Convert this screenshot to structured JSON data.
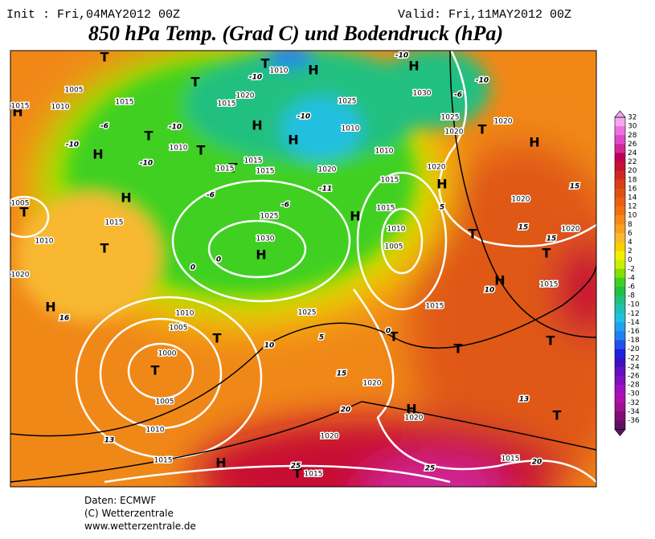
{
  "header": {
    "init": "Init : Fri,04MAY2012 00Z",
    "valid": "Valid: Fri,11MAY2012 00Z",
    "title": "850 hPa Temp. (Grad C) und Bodendruck (hPa)"
  },
  "map": {
    "pressure_centers": [
      "H",
      "H",
      "T",
      "T",
      "T",
      "H",
      "H",
      "H",
      "T",
      "T",
      "T",
      "H",
      "H",
      "H",
      "T",
      "H",
      "T",
      "H",
      "H",
      "T",
      "T",
      "H",
      "T",
      "T",
      "T",
      "T",
      "T",
      "T",
      "H",
      "T",
      "H",
      "T",
      "H"
    ],
    "isobar_labels": [
      "1015",
      "1010",
      "1005",
      "1015",
      "1020",
      "1015",
      "1010",
      "1030",
      "1025",
      "1020",
      "1025",
      "1010",
      "1010",
      "1015",
      "1015",
      "1015",
      "1020",
      "1010",
      "1015",
      "1020",
      "1020",
      "1020",
      "1020",
      "1005",
      "1015",
      "1010",
      "1020",
      "1025",
      "1030",
      "1015",
      "1010",
      "1005",
      "1015",
      "1015",
      "1025",
      "1010",
      "1005",
      "1000",
      "1005",
      "1020",
      "1020",
      "1010",
      "1020",
      "1015",
      "1015",
      "1015"
    ],
    "isotherm_labels": [
      "-10",
      "-10",
      "-10",
      "-6",
      "-10",
      "-6",
      "-10",
      "-10",
      "-10",
      "-6",
      "-11",
      "-6",
      "15",
      "15",
      "15",
      "10",
      "10",
      "5",
      "0",
      "0",
      "16",
      "15",
      "20",
      "13",
      "13",
      "20",
      "25",
      "25",
      "5",
      "0"
    ]
  },
  "colorbar": {
    "levels": [
      32,
      30,
      28,
      26,
      24,
      22,
      20,
      18,
      16,
      14,
      12,
      10,
      8,
      6,
      4,
      2,
      0,
      -2,
      -4,
      -6,
      -8,
      -10,
      -12,
      -14,
      -16,
      -18,
      -20,
      -22,
      -24,
      -26,
      -28,
      -30,
      -32,
      -34,
      -36
    ],
    "colors": [
      "#f6a6f0",
      "#f070e0",
      "#e048c8",
      "#d02898",
      "#c00058",
      "#c81030",
      "#d02820",
      "#d84018",
      "#e05010",
      "#e86010",
      "#f07010",
      "#f48818",
      "#f8a020",
      "#f8b830",
      "#f8d000",
      "#f0f000",
      "#c8f000",
      "#80e000",
      "#40d020",
      "#20c040",
      "#20c080",
      "#20c0b0",
      "#20c0e0",
      "#20a0f0",
      "#2080f0",
      "#2050f0",
      "#2020e0",
      "#4010c0",
      "#6010c0",
      "#8010c0",
      "#a010c0",
      "#b010b0",
      "#a01090",
      "#801070",
      "#601060"
    ]
  },
  "footer": {
    "source": "Daten: ECMWF",
    "copyright": "(C) Wetterzentrale",
    "url": "www.wetterzentrale.de"
  }
}
